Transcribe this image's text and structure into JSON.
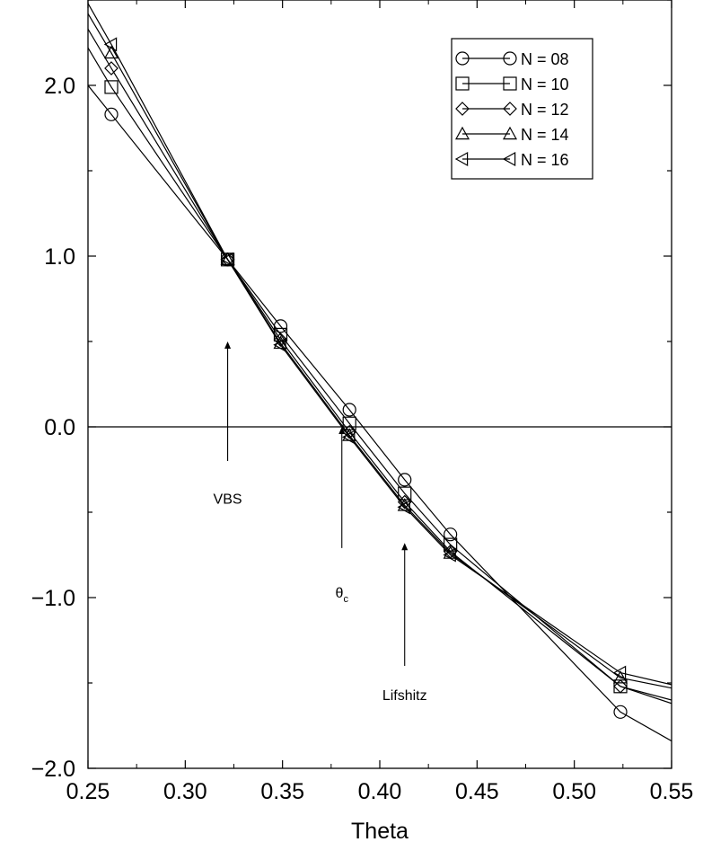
{
  "chart_data": {
    "type": "line",
    "title": "",
    "xlabel": "Theta",
    "ylabel": "",
    "xlim": [
      0.25,
      0.55
    ],
    "ylim": [
      -2.0,
      2.5
    ],
    "x_ticks": [
      0.25,
      0.3,
      0.35,
      0.4,
      0.45,
      0.5,
      0.55
    ],
    "x_tick_labels": [
      "0.25",
      "0.30",
      "0.35",
      "0.40",
      "0.45",
      "0.50",
      "0.55"
    ],
    "y_ticks": [
      -2.0,
      -1.0,
      0.0,
      1.0,
      2.0
    ],
    "y_tick_labels": [
      "−2.0",
      "−1.0",
      "0.0",
      "1.0",
      "2.0"
    ],
    "grid": false,
    "legend_position": "top-right",
    "zero_line": true,
    "series": [
      {
        "name": "N = 08",
        "marker": "circle",
        "x": [
          0.262,
          0.3218,
          0.349,
          0.3844,
          0.4128,
          0.4363,
          0.5237
        ],
        "y": [
          1.83,
          0.98,
          0.59,
          0.1,
          -0.31,
          -0.63,
          -1.67
        ],
        "line_ext": {
          "start": [
            0.25,
            2.0
          ],
          "end": [
            0.55,
            -1.84
          ]
        }
      },
      {
        "name": "N = 10",
        "marker": "square",
        "x": [
          0.262,
          0.3218,
          0.349,
          0.3844,
          0.4128,
          0.4363,
          0.5237
        ],
        "y": [
          1.99,
          0.98,
          0.54,
          0.02,
          -0.39,
          -0.69,
          -1.52
        ],
        "line_ext": {
          "start": [
            0.25,
            2.22
          ],
          "end": [
            0.55,
            -1.62
          ]
        }
      },
      {
        "name": "N = 12",
        "marker": "diamond",
        "x": [
          0.262,
          0.3218,
          0.349,
          0.3844,
          0.4128,
          0.4363,
          0.5237
        ],
        "y": [
          2.1,
          0.98,
          0.51,
          -0.03,
          -0.44,
          -0.73,
          -1.52
        ],
        "line_ext": {
          "start": [
            0.25,
            2.33
          ],
          "end": [
            0.55,
            -1.6
          ]
        }
      },
      {
        "name": "N = 14",
        "marker": "triangle-up",
        "x": [
          0.262,
          0.3218,
          0.349,
          0.3844,
          0.4128,
          0.4363,
          0.5237
        ],
        "y": [
          2.19,
          0.98,
          0.49,
          -0.05,
          -0.46,
          -0.74,
          -1.47
        ],
        "line_ext": {
          "start": [
            0.25,
            2.42
          ],
          "end": [
            0.55,
            -1.53
          ]
        }
      },
      {
        "name": "N = 16",
        "marker": "triangle-left",
        "x": [
          0.262,
          0.3218,
          0.349,
          0.3844,
          0.4128,
          0.4363,
          0.5237
        ],
        "y": [
          2.24,
          0.98,
          0.48,
          -0.06,
          -0.47,
          -0.75,
          -1.44
        ],
        "line_ext": {
          "start": [
            0.25,
            2.48
          ],
          "end": [
            0.55,
            -1.51
          ]
        }
      }
    ],
    "annotations": [
      {
        "text": "VBS",
        "arrow_x": 0.3218,
        "arrow_from_y": -0.2,
        "arrow_to_y": 0.5,
        "label_x": 0.3218,
        "label_y": -0.45
      },
      {
        "text": "θ",
        "subscript": "c",
        "arrow_x": 0.3805,
        "arrow_from_y": -0.71,
        "arrow_to_y": 0.0,
        "label_x": 0.3805,
        "label_y": -1.0
      },
      {
        "text": "Lifshitz",
        "arrow_x": 0.4128,
        "arrow_from_y": -1.4,
        "arrow_to_y": -0.68,
        "label_x": 0.4128,
        "label_y": -1.6
      }
    ]
  }
}
